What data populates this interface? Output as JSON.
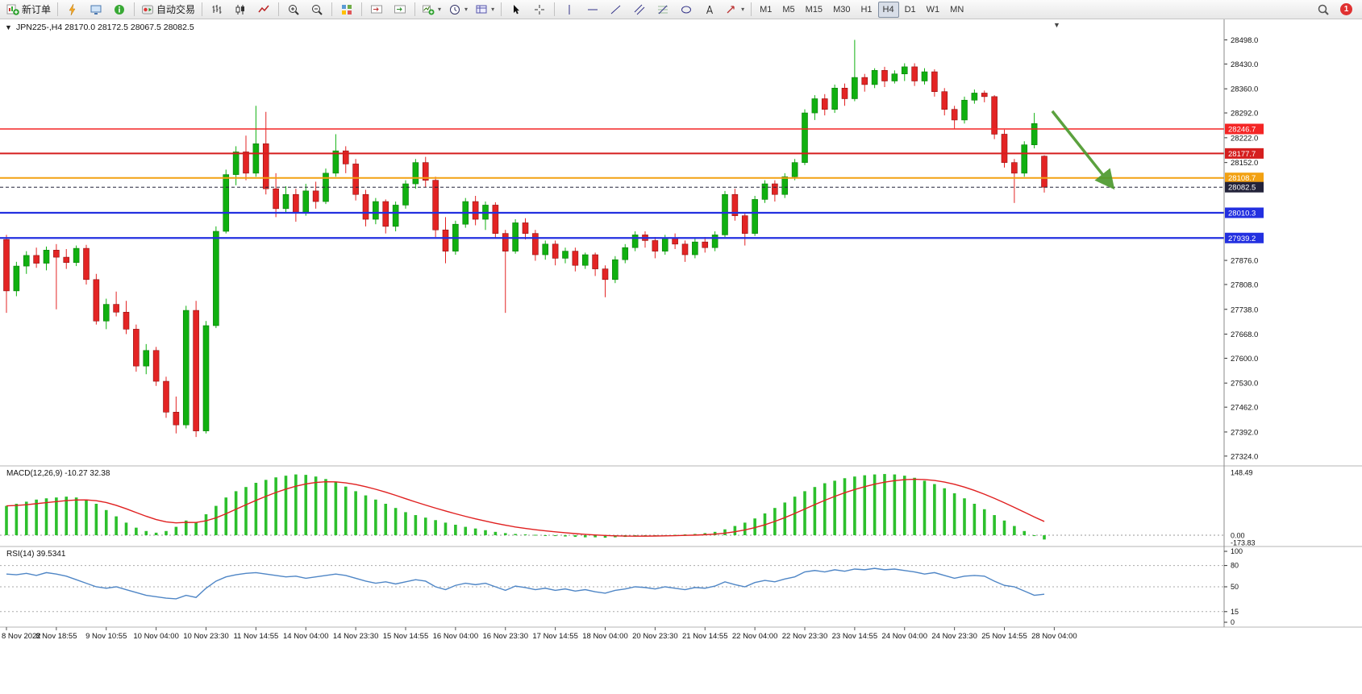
{
  "toolbar": {
    "groups": [
      {
        "items": [
          {
            "name": "new-order-button",
            "icon": "new-order-icon",
            "label": "新订单"
          }
        ]
      },
      {
        "items": [
          {
            "name": "indicators-button",
            "icon": "lightning-icon"
          },
          {
            "name": "chart-window-button",
            "icon": "monitor-icon"
          },
          {
            "name": "data-window-button",
            "icon": "info-icon"
          }
        ]
      },
      {
        "items": [
          {
            "name": "autotrading-button",
            "icon": "autotrade-icon",
            "label": "自动交易"
          }
        ]
      },
      {
        "items": [
          {
            "name": "bar-chart-button",
            "icon": "bars-icon"
          },
          {
            "name": "candlestick-chart-button",
            "icon": "candles-icon"
          },
          {
            "name": "line-chart-button",
            "icon": "line-icon"
          }
        ]
      },
      {
        "items": [
          {
            "name": "zoom-in-button",
            "icon": "zoom-in-icon"
          },
          {
            "name": "zoom-out-button",
            "icon": "zoom-out-icon"
          }
        ]
      },
      {
        "items": [
          {
            "name": "tile-windows-button",
            "icon": "tile-icon"
          }
        ]
      },
      {
        "items": [
          {
            "name": "chart-shift-button",
            "icon": "chart-shift-icon"
          },
          {
            "name": "auto-scroll-button",
            "icon": "auto-scroll-icon"
          }
        ]
      },
      {
        "items": [
          {
            "name": "new-chart-button",
            "icon": "new-chart-icon",
            "dropdown": true
          },
          {
            "name": "periods-button",
            "icon": "clock-icon",
            "dropdown": true
          },
          {
            "name": "templates-button",
            "icon": "template-icon",
            "dropdown": true
          }
        ]
      },
      {
        "items": [
          {
            "name": "cursor-button",
            "icon": "cursor-icon"
          },
          {
            "name": "crosshair-button",
            "icon": "crosshair-icon"
          }
        ]
      },
      {
        "items": [
          {
            "name": "vertical-line-button",
            "icon": "vline-icon"
          },
          {
            "name": "horizontal-line-button",
            "icon": "hline-icon"
          },
          {
            "name": "trendline-button",
            "icon": "trendline-icon"
          },
          {
            "name": "channel-button",
            "icon": "channel-icon"
          },
          {
            "name": "fibonacci-button",
            "icon": "fibonacci-icon"
          },
          {
            "name": "shapes-button",
            "icon": "shapes-icon"
          },
          {
            "name": "text-button",
            "icon": "text-icon"
          },
          {
            "name": "arrows-button",
            "icon": "arrow-tools-icon",
            "dropdown": true
          }
        ]
      },
      {
        "items": [
          {
            "name": "timeframe-m1-button",
            "label": "M1"
          },
          {
            "name": "timeframe-m5-button",
            "label": "M5"
          },
          {
            "name": "timeframe-m15-button",
            "label": "M15"
          },
          {
            "name": "timeframe-m30-button",
            "label": "M30"
          },
          {
            "name": "timeframe-h1-button",
            "label": "H1"
          },
          {
            "name": "timeframe-h4-button",
            "label": "H4",
            "active": true
          },
          {
            "name": "timeframe-d1-button",
            "label": "D1"
          },
          {
            "name": "timeframe-w1-button",
            "label": "W1"
          },
          {
            "name": "timeframe-mn-button",
            "label": "MN"
          }
        ]
      }
    ],
    "right": {
      "notification_count": "1"
    }
  },
  "chart": {
    "header": {
      "collapse_icon": "▼",
      "symbol": "JPN225-,H4",
      "ohlc": "28170.0 28172.5 28067.5 28082.5"
    },
    "shift_marker": "▼",
    "levels": [
      {
        "label": "28246.7",
        "price": 28246.7,
        "color": "#f42525",
        "width": 1.6,
        "style": "solid"
      },
      {
        "label": "28177.7",
        "price": 28177.7,
        "color": "#d51f1f",
        "width": 2,
        "style": "solid"
      },
      {
        "label": "28108.7",
        "price": 28108.7,
        "color": "#f2a112",
        "width": 2,
        "style": "solid"
      },
      {
        "label": "28082.5",
        "price": 28082.5,
        "color": "#23233a",
        "width": 1,
        "style": "dashed",
        "current": true
      },
      {
        "label": "28010.3",
        "price": 28010.3,
        "color": "#2330e0",
        "width": 2.2,
        "style": "solid"
      },
      {
        "label": "27939.2",
        "price": 27939.2,
        "color": "#2330e0",
        "width": 2.2,
        "style": "solid"
      }
    ],
    "y_ticks": [
      "28498.0",
      "28430.0",
      "28360.0",
      "28292.0",
      "28222.0",
      "28152.0",
      "27876.0",
      "27808.0",
      "27738.0",
      "27668.0",
      "27600.0",
      "27530.0",
      "27462.0",
      "27392.0",
      "27324.0"
    ]
  },
  "macd": {
    "label": "MACD(12,26,9) -10.27 32.38",
    "axis_labels": [
      "148.49",
      "0.00",
      "-173.83"
    ]
  },
  "rsi": {
    "label": "RSI(14) 39.5341",
    "axis_labels": [
      "100",
      "80",
      "50",
      "15",
      "0"
    ]
  },
  "colors": {
    "bull": "#10b010",
    "bull_border": "#0a7a0a",
    "bear": "#e32424",
    "bear_border": "#8f1010",
    "macd_histogram": "#2cbf2c",
    "macd_signal": "#e02020",
    "rsi_line": "#4f86c6",
    "arrow": "#4e9a2e"
  },
  "chart_data": {
    "type": "candlestick",
    "symbol": "JPN225-",
    "timeframe": "H4",
    "price_range": [
      27310,
      28515
    ],
    "candles_per_label": 5,
    "x_labels": [
      "8 Nov 2022",
      "8 Nov 18:55",
      "9 Nov 10:55",
      "10 Nov 04:00",
      "10 Nov 23:30",
      "11 Nov 14:55",
      "14 Nov 04:00",
      "14 Nov 23:30",
      "15 Nov 14:55",
      "16 Nov 04:00",
      "16 Nov 23:30",
      "17 Nov 14:55",
      "18 Nov 04:00",
      "20 Nov 23:30",
      "21 Nov 14:55",
      "22 Nov 04:00",
      "22 Nov 23:30",
      "23 Nov 14:55",
      "24 Nov 04:00",
      "24 Nov 23:30",
      "25 Nov 14:55",
      "28 Nov 04:00"
    ],
    "candles": [
      [
        27935,
        27948,
        27728,
        27790
      ],
      [
        27790,
        27872,
        27775,
        27860
      ],
      [
        27860,
        27902,
        27838,
        27890
      ],
      [
        27890,
        27912,
        27855,
        27868
      ],
      [
        27868,
        27915,
        27848,
        27905
      ],
      [
        27905,
        27922,
        27738,
        27885
      ],
      [
        27885,
        27908,
        27852,
        27870
      ],
      [
        27870,
        27918,
        27860,
        27910
      ],
      [
        27910,
        27920,
        27808,
        27822
      ],
      [
        27822,
        27838,
        27695,
        27705
      ],
      [
        27705,
        27768,
        27682,
        27752
      ],
      [
        27752,
        27788,
        27718,
        27730
      ],
      [
        27730,
        27762,
        27668,
        27682
      ],
      [
        27682,
        27695,
        27562,
        27578
      ],
      [
        27578,
        27640,
        27555,
        27622
      ],
      [
        27622,
        27632,
        27522,
        27535
      ],
      [
        27535,
        27548,
        27432,
        27448
      ],
      [
        27448,
        27492,
        27388,
        27412
      ],
      [
        27412,
        27748,
        27402,
        27735
      ],
      [
        27735,
        27762,
        27378,
        27395
      ],
      [
        27395,
        27705,
        27388,
        27692
      ],
      [
        27692,
        27972,
        27685,
        27958
      ],
      [
        27958,
        28132,
        27952,
        28118
      ],
      [
        28118,
        28198,
        28088,
        28182
      ],
      [
        28182,
        28228,
        28102,
        28122
      ],
      [
        28122,
        28312,
        28112,
        28205
      ],
      [
        28205,
        28295,
        28062,
        28078
      ],
      [
        28078,
        28122,
        27998,
        28022
      ],
      [
        28022,
        28085,
        28008,
        28062
      ],
      [
        28062,
        28078,
        27985,
        28012
      ],
      [
        28012,
        28092,
        28002,
        28072
      ],
      [
        28072,
        28098,
        28022,
        28042
      ],
      [
        28042,
        28135,
        28035,
        28122
      ],
      [
        28122,
        28232,
        28112,
        28185
      ],
      [
        28185,
        28198,
        28122,
        28148
      ],
      [
        28148,
        28162,
        28045,
        28062
      ],
      [
        28062,
        28075,
        27972,
        27992
      ],
      [
        27992,
        28052,
        27978,
        28042
      ],
      [
        28042,
        28048,
        27952,
        27972
      ],
      [
        27972,
        28042,
        27958,
        28032
      ],
      [
        28032,
        28102,
        28022,
        28092
      ],
      [
        28092,
        28162,
        28078,
        28152
      ],
      [
        28152,
        28168,
        28082,
        28102
      ],
      [
        28102,
        28112,
        27942,
        27962
      ],
      [
        27962,
        27998,
        27868,
        27902
      ],
      [
        27902,
        27988,
        27892,
        27978
      ],
      [
        27978,
        28052,
        27968,
        28042
      ],
      [
        28042,
        28058,
        27975,
        27992
      ],
      [
        27992,
        28042,
        27962,
        28032
      ],
      [
        28032,
        28040,
        27938,
        27952
      ],
      [
        27952,
        27962,
        27728,
        27902
      ],
      [
        27902,
        27992,
        27895,
        27982
      ],
      [
        27982,
        27995,
        27935,
        27952
      ],
      [
        27952,
        27962,
        27875,
        27892
      ],
      [
        27892,
        27932,
        27878,
        27922
      ],
      [
        27922,
        27932,
        27862,
        27882
      ],
      [
        27882,
        27912,
        27868,
        27902
      ],
      [
        27902,
        27912,
        27845,
        27862
      ],
      [
        27862,
        27898,
        27852,
        27892
      ],
      [
        27892,
        27898,
        27832,
        27852
      ],
      [
        27852,
        27862,
        27772,
        27822
      ],
      [
        27822,
        27888,
        27812,
        27878
      ],
      [
        27878,
        27922,
        27868,
        27912
      ],
      [
        27912,
        27958,
        27902,
        27948
      ],
      [
        27948,
        27958,
        27912,
        27932
      ],
      [
        27932,
        27942,
        27882,
        27902
      ],
      [
        27902,
        27948,
        27892,
        27938
      ],
      [
        27938,
        27952,
        27908,
        27922
      ],
      [
        27922,
        27932,
        27872,
        27892
      ],
      [
        27892,
        27938,
        27882,
        27928
      ],
      [
        27928,
        27942,
        27898,
        27912
      ],
      [
        27912,
        27958,
        27902,
        27948
      ],
      [
        27948,
        28072,
        27942,
        28062
      ],
      [
        28062,
        28078,
        27988,
        28002
      ],
      [
        28002,
        28012,
        27918,
        27952
      ],
      [
        27952,
        28058,
        27945,
        28048
      ],
      [
        28048,
        28102,
        28038,
        28092
      ],
      [
        28092,
        28102,
        28042,
        28062
      ],
      [
        28062,
        28122,
        28052,
        28112
      ],
      [
        28112,
        28162,
        28102,
        28152
      ],
      [
        28152,
        28302,
        28145,
        28292
      ],
      [
        28292,
        28342,
        28272,
        28332
      ],
      [
        28332,
        28345,
        28285,
        28302
      ],
      [
        28302,
        28372,
        28292,
        28362
      ],
      [
        28362,
        28375,
        28312,
        28332
      ],
      [
        28332,
        28498,
        28325,
        28392
      ],
      [
        28392,
        28402,
        28352,
        28372
      ],
      [
        28372,
        28418,
        28362,
        28412
      ],
      [
        28412,
        28422,
        28365,
        28382
      ],
      [
        28382,
        28412,
        28375,
        28402
      ],
      [
        28402,
        28432,
        28382,
        28422
      ],
      [
        28422,
        28432,
        28368,
        28382
      ],
      [
        28382,
        28418,
        28372,
        28408
      ],
      [
        28408,
        28415,
        28338,
        28352
      ],
      [
        28352,
        28362,
        28285,
        28302
      ],
      [
        28302,
        28312,
        28248,
        28272
      ],
      [
        28272,
        28338,
        28262,
        28328
      ],
      [
        28328,
        28358,
        28318,
        28348
      ],
      [
        28348,
        28355,
        28322,
        28338
      ],
      [
        28338,
        28342,
        28218,
        28232
      ],
      [
        28232,
        28245,
        28138,
        28152
      ],
      [
        28152,
        28162,
        28038,
        28122
      ],
      [
        28122,
        28212,
        28112,
        28202
      ],
      [
        28202,
        28292,
        28192,
        28262
      ],
      [
        28170,
        28172.5,
        28067.5,
        28082.5
      ]
    ],
    "macd_values": [
      70,
      75,
      80,
      85,
      88,
      90,
      92,
      90,
      85,
      75,
      60,
      45,
      30,
      18,
      10,
      6,
      10,
      20,
      35,
      30,
      50,
      70,
      90,
      105,
      115,
      125,
      132,
      138,
      142,
      145,
      144,
      140,
      134,
      126,
      116,
      105,
      95,
      85,
      75,
      65,
      55,
      48,
      42,
      36,
      30,
      25,
      20,
      16,
      12,
      8,
      5,
      3,
      2,
      1,
      0,
      -2,
      -3,
      -4,
      -5,
      -5,
      -6,
      -5,
      -4,
      -3,
      -2,
      -1,
      0,
      1,
      2,
      3,
      5,
      8,
      14,
      22,
      30,
      40,
      52,
      65,
      78,
      92,
      105,
      115,
      124,
      130,
      136,
      140,
      143,
      145,
      146,
      145,
      142,
      137,
      130,
      122,
      112,
      100,
      88,
      75,
      62,
      48,
      35,
      22,
      10,
      -2,
      -10.27
    ],
    "rsi_values": [
      68,
      67,
      69,
      66,
      70,
      68,
      65,
      60,
      55,
      50,
      48,
      50,
      46,
      42,
      38,
      36,
      34,
      33,
      38,
      35,
      48,
      58,
      64,
      67,
      69,
      70,
      68,
      66,
      64,
      65,
      62,
      64,
      66,
      68,
      66,
      62,
      58,
      55,
      57,
      54,
      57,
      60,
      58,
      50,
      46,
      52,
      55,
      53,
      55,
      50,
      45,
      51,
      49,
      46,
      48,
      45,
      47,
      44,
      46,
      43,
      41,
      45,
      47,
      50,
      49,
      47,
      50,
      48,
      46,
      49,
      48,
      51,
      57,
      53,
      50,
      56,
      59,
      57,
      61,
      64,
      71,
      73,
      71,
      74,
      72,
      75,
      74,
      76,
      74,
      75,
      73,
      71,
      68,
      70,
      66,
      62,
      65,
      66,
      65,
      58,
      52,
      50,
      44,
      38,
      39.5
    ],
    "annotations": [
      {
        "type": "arrow",
        "from_index": 104.8,
        "from_price": 28297,
        "to_index": 110.7,
        "to_price": 28088
      }
    ]
  }
}
